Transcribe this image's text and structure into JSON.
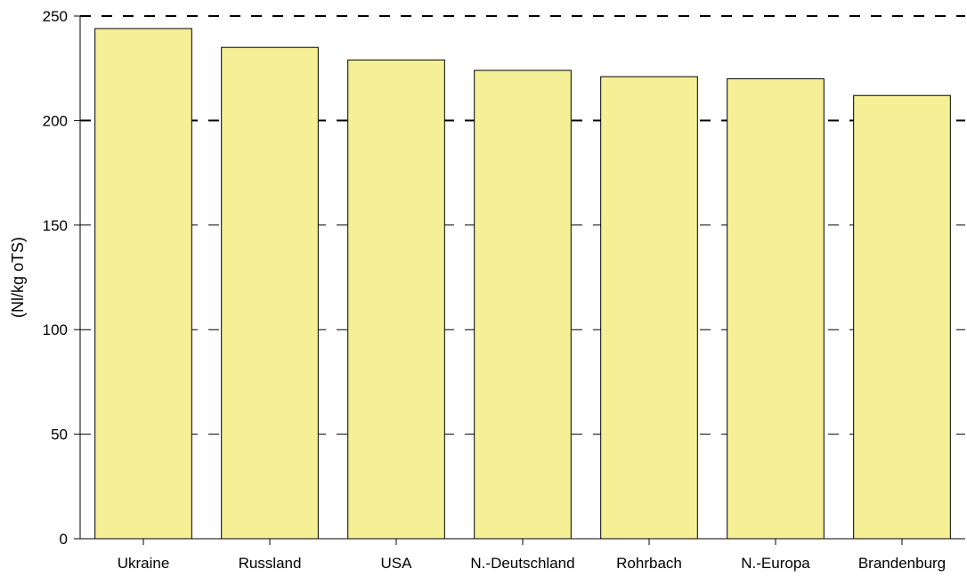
{
  "chart_data": {
    "type": "bar",
    "title": "",
    "xlabel": "",
    "ylabel": "(Nl/kg oTS)",
    "categories": [
      "Ukraine",
      "Russland",
      "USA",
      "N.-Deutschland",
      "Rohrbach",
      "N.-Europa",
      "Brandenburg"
    ],
    "values": [
      244,
      235,
      229,
      224,
      221,
      220,
      212
    ],
    "ylim": [
      0,
      250
    ],
    "yticks": [
      "0",
      "50",
      "100",
      "150",
      "200",
      "250"
    ],
    "grid": "horizontal dashed",
    "colors": {
      "bar_fill": "#f5f096",
      "bar_stroke": "#000000",
      "grid": "#000000"
    }
  }
}
